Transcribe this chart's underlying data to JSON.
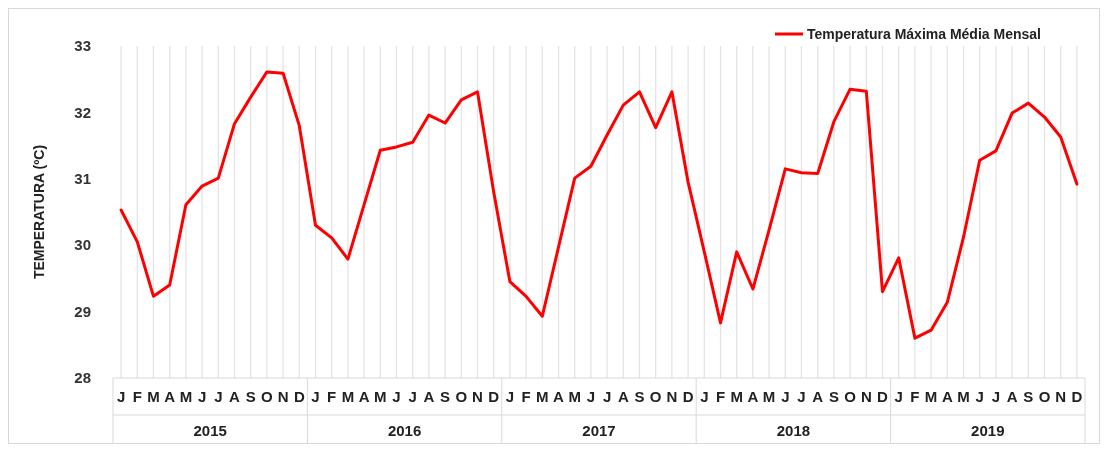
{
  "chart_data": {
    "type": "line",
    "ylabel": "TEMPERATURA (ºC)",
    "categories": [
      "J",
      "F",
      "M",
      "A",
      "M",
      "J",
      "J",
      "A",
      "S",
      "O",
      "N",
      "D",
      "J",
      "F",
      "M",
      "A",
      "M",
      "J",
      "J",
      "A",
      "S",
      "O",
      "N",
      "D",
      "J",
      "F",
      "M",
      "A",
      "M",
      "J",
      "J",
      "A",
      "S",
      "O",
      "N",
      "D",
      "J",
      "F",
      "M",
      "A",
      "M",
      "J",
      "J",
      "A",
      "S",
      "O",
      "N",
      "D",
      "J",
      "F",
      "M",
      "A",
      "M",
      "J",
      "J",
      "A",
      "S",
      "O",
      "N",
      "D"
    ],
    "series": [
      {
        "name": "Temperatura Máxima Média Mensal",
        "color": "#ff0000",
        "values": [
          30.53,
          30.05,
          29.23,
          29.4,
          30.61,
          30.89,
          31.01,
          31.83,
          32.23,
          32.61,
          32.59,
          31.8,
          30.3,
          30.11,
          29.79,
          30.61,
          31.43,
          31.48,
          31.55,
          31.96,
          31.84,
          32.19,
          32.31,
          30.8,
          29.45,
          29.23,
          28.93,
          29.97,
          31.01,
          31.19,
          31.66,
          32.11,
          32.31,
          31.77,
          32.31,
          30.95,
          29.9,
          28.83,
          29.9,
          29.34,
          30.23,
          31.15,
          31.09,
          31.08,
          31.86,
          32.35,
          32.32,
          29.3,
          29.81,
          28.6,
          28.72,
          29.14,
          30.12,
          31.28,
          31.42,
          31.99,
          32.14,
          31.93,
          31.63,
          30.92
        ]
      }
    ],
    "annotations": [
      "2015",
      "2016",
      "2017",
      "2018",
      "2019"
    ],
    "ylim": [
      28,
      33
    ],
    "yticks": [
      28,
      29,
      30,
      31,
      32,
      33
    ],
    "legend": "top right",
    "grid": "x",
    "marker": "none",
    "line_style": "solid"
  }
}
